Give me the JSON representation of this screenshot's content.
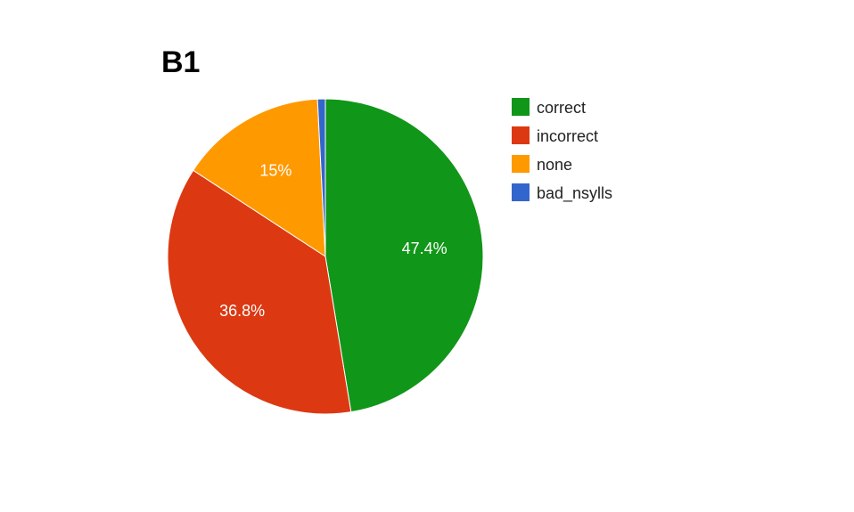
{
  "chart_data": {
    "type": "pie",
    "title": "B1",
    "categories": [
      "correct",
      "incorrect",
      "none",
      "bad_nsylls"
    ],
    "values": [
      47.4,
      36.8,
      15.0,
      0.8
    ],
    "slice_labels": [
      "47.4%",
      "36.8%",
      "15%",
      ""
    ],
    "colors": [
      "#109618",
      "#dc3912",
      "#ff9900",
      "#3366cc"
    ],
    "legend_position": "right",
    "start_direction": "top",
    "direction": "clockwise"
  }
}
